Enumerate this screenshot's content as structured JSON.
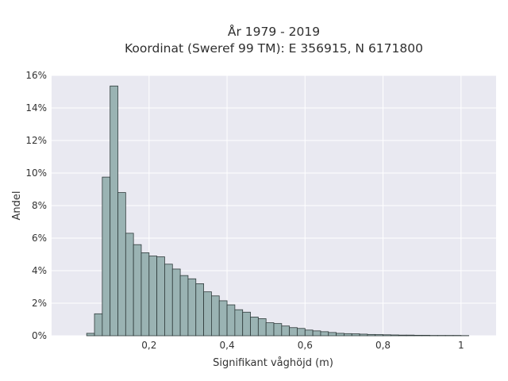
{
  "chart_data": {
    "type": "bar",
    "title": "År 1979 - 2019",
    "subtitle": "Koordinat (Sweref 99 TM): E 356915, N 6171800",
    "xlabel": "Signifikant våghöjd (m)",
    "ylabel": "Andel",
    "xlim": [
      -0.05,
      1.09
    ],
    "ylim": [
      0,
      16
    ],
    "x_ticks": [
      0.2,
      0.4,
      0.6,
      0.8,
      1.0
    ],
    "x_tick_labels": [
      "0,2",
      "0,4",
      "0,6",
      "0,8",
      "1"
    ],
    "y_ticks": [
      0,
      2,
      4,
      6,
      8,
      10,
      12,
      14,
      16
    ],
    "y_tick_labels": [
      "0%",
      "2%",
      "4%",
      "6%",
      "8%",
      "10%",
      "12%",
      "14%",
      "16%"
    ],
    "bin_width": 0.02,
    "bin_start": 0.04,
    "values": [
      0.15,
      1.35,
      9.75,
      15.35,
      8.8,
      6.3,
      5.6,
      5.1,
      4.9,
      4.85,
      4.4,
      4.1,
      3.7,
      3.5,
      3.2,
      2.7,
      2.45,
      2.15,
      1.9,
      1.6,
      1.45,
      1.15,
      1.05,
      0.8,
      0.75,
      0.6,
      0.5,
      0.45,
      0.35,
      0.3,
      0.25,
      0.2,
      0.15,
      0.13,
      0.12,
      0.1,
      0.08,
      0.07,
      0.06,
      0.05,
      0.04,
      0.04,
      0.03,
      0.03,
      0.02,
      0.02,
      0.02,
      0.02,
      0.01
    ],
    "grid": true,
    "colors": {
      "plot_background": "#e9e9f1",
      "bar_fill": "#9ab3b3",
      "bar_stroke": "#2f3b3b",
      "grid": "#ffffff"
    }
  }
}
